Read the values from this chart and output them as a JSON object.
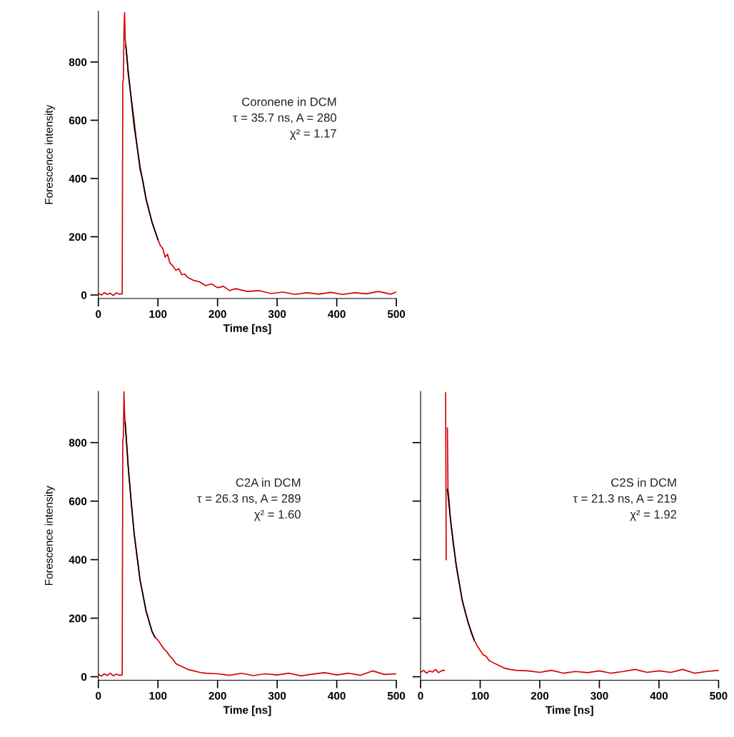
{
  "chart_data": [
    {
      "type": "line",
      "xlabel": "Time [ns]",
      "ylabel": "Forescence intensity",
      "xlim": [
        0,
        500
      ],
      "ylim": [
        -12,
        975
      ],
      "xticks": [
        0,
        100,
        200,
        300,
        400,
        500
      ],
      "yticks": [
        0,
        200,
        400,
        600,
        800
      ],
      "grid": false,
      "annotations": [
        "Coronene in DCM",
        "τ = 35.7 ns, A = 280",
        "χ² = 1.17"
      ],
      "series": [
        {
          "color": "#d40000",
          "x": [
            0,
            5,
            10,
            15,
            20,
            25,
            30,
            35,
            39,
            40,
            41,
            42,
            43,
            44,
            45,
            46,
            48,
            50,
            55,
            60,
            65,
            70,
            75,
            80,
            85,
            90,
            95,
            100,
            104,
            108,
            112,
            116,
            120,
            125,
            130,
            135,
            140,
            145,
            150,
            160,
            170,
            180,
            190,
            200,
            210,
            220,
            230,
            250,
            270,
            290,
            310,
            330,
            350,
            370,
            390,
            410,
            430,
            450,
            470,
            490,
            500
          ],
          "values": [
            5,
            0,
            8,
            2,
            6,
            -2,
            7,
            3,
            4,
            4,
            730,
            740,
            900,
            970,
            880,
            860,
            820,
            760,
            680,
            600,
            510,
            430,
            390,
            330,
            290,
            250,
            220,
            190,
            170,
            160,
            130,
            140,
            110,
            100,
            85,
            90,
            70,
            72,
            60,
            50,
            45,
            32,
            38,
            25,
            30,
            15,
            22,
            12,
            15,
            5,
            10,
            2,
            8,
            3,
            9,
            2,
            8,
            4,
            12,
            3,
            10
          ]
        },
        {
          "color": "#000000",
          "x": [
            46,
            50,
            60,
            70,
            80,
            90,
            100
          ],
          "values": [
            857,
            770,
            580,
            440,
            330,
            250,
            190
          ]
        }
      ]
    },
    {
      "type": "line",
      "xlabel": "Time [ns]",
      "ylabel": "Forescence intensity",
      "xlim": [
        0,
        500
      ],
      "ylim": [
        -12,
        975
      ],
      "xticks": [
        0,
        100,
        200,
        300,
        400,
        500
      ],
      "yticks": [
        0,
        200,
        400,
        600,
        800
      ],
      "grid": false,
      "annotations": [
        "C2A in DCM",
        "τ = 26.3 ns, A = 289",
        "χ² = 1.60"
      ],
      "series": [
        {
          "color": "#d40000",
          "x": [
            0,
            5,
            10,
            15,
            20,
            25,
            30,
            35,
            39,
            40,
            41,
            42,
            43,
            44,
            45,
            48,
            50,
            55,
            60,
            65,
            70,
            75,
            80,
            85,
            90,
            95,
            100,
            105,
            110,
            115,
            120,
            125,
            130,
            140,
            150,
            160,
            170,
            180,
            200,
            220,
            240,
            260,
            280,
            300,
            320,
            340,
            360,
            380,
            400,
            420,
            440,
            460,
            480,
            500
          ],
          "values": [
            8,
            2,
            10,
            4,
            12,
            3,
            9,
            5,
            6,
            6,
            808,
            820,
            974,
            900,
            870,
            780,
            720,
            600,
            490,
            410,
            330,
            280,
            225,
            190,
            155,
            135,
            125,
            110,
            95,
            85,
            70,
            60,
            45,
            35,
            25,
            20,
            15,
            12,
            10,
            5,
            12,
            4,
            10,
            6,
            12,
            3,
            9,
            14,
            6,
            12,
            5,
            20,
            8,
            10
          ]
        },
        {
          "color": "#000000",
          "x": [
            45,
            50,
            55,
            60,
            70,
            80,
            90,
            95
          ],
          "values": [
            869,
            720,
            600,
            490,
            330,
            225,
            155,
            135
          ]
        }
      ]
    },
    {
      "type": "line",
      "xlabel": "Time [ns]",
      "xlim": [
        0,
        500
      ],
      "ylim": [
        -12,
        975
      ],
      "xticks": [
        0,
        100,
        200,
        300,
        400,
        500
      ],
      "yticks": [
        0,
        200,
        400,
        600,
        800
      ],
      "grid": false,
      "tick_labels": "x",
      "annotations": [
        "C2S in DCM",
        "τ = 21.3 ns, A = 219",
        "χ² = 1.92"
      ],
      "series": [
        {
          "color": "#d40000",
          "x": [
            0,
            5,
            10,
            15,
            20,
            25,
            30,
            35,
            39,
            40,
            41,
            42,
            43,
            44,
            45,
            46,
            48,
            50,
            55,
            60,
            65,
            70,
            75,
            80,
            85,
            90,
            95,
            100,
            105,
            110,
            115,
            120,
            130,
            140,
            150,
            160,
            180,
            200,
            220,
            240,
            260,
            280,
            300,
            320,
            340,
            360,
            380,
            400,
            420,
            440,
            460,
            480,
            500
          ],
          "values": [
            15,
            22,
            12,
            20,
            16,
            25,
            14,
            20,
            22,
            22,
            null,
            970,
            400,
            null,
            850,
            640,
            600,
            540,
            450,
            380,
            320,
            260,
            220,
            185,
            150,
            125,
            105,
            90,
            75,
            70,
            55,
            50,
            40,
            30,
            25,
            22,
            20,
            15,
            22,
            12,
            18,
            14,
            20,
            12,
            18,
            25,
            15,
            20,
            15,
            25,
            12,
            18,
            22
          ]
        },
        {
          "color": "#000000",
          "x": [
            45,
            50,
            60,
            70,
            80,
            90
          ],
          "values": [
            641,
            540,
            376,
            260,
            183,
            125
          ]
        }
      ]
    }
  ]
}
